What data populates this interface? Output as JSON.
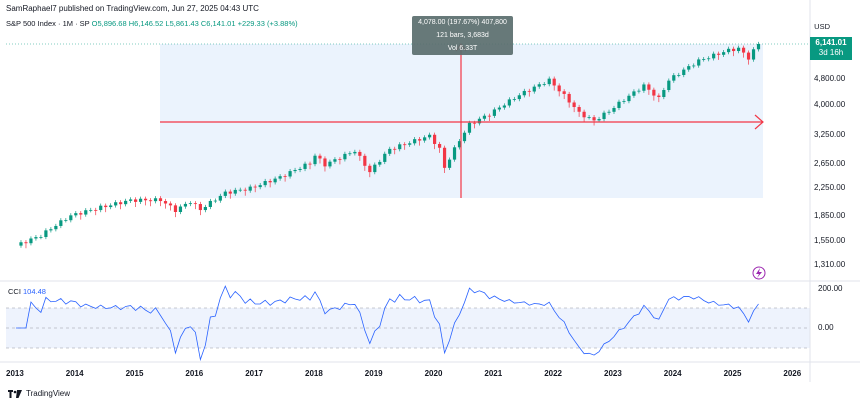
{
  "header": {
    "published": "SamRaphael7 published on TradingView.com, Jun 27, 2025 04:43 UTC"
  },
  "legend": {
    "symbol": "S&P 500 Index · 1M · SP",
    "ohlc": "O5,896.68 H6,146.52 L5,861.43 C6,141.01 +229.33 (+3.88%)"
  },
  "currency": "USD",
  "last_price": {
    "value": "6,141.01",
    "countdown": "3d 16h"
  },
  "tooltip": {
    "line1": "4,078.00 (197.67%) 407,800",
    "line2": "121 bars, 3,683d",
    "line3": "Vol 6.33T"
  },
  "cci": {
    "name": "CCI",
    "value": "104.48",
    "axis": [
      "200.00",
      "0.00"
    ]
  },
  "footer": {
    "brand": "TradingView"
  },
  "colors": {
    "up": "#089981",
    "down": "#f23645",
    "cci": "#2962ff",
    "measure": "#f23645",
    "range_fill": "#ebf3fd"
  },
  "chart_data": {
    "type": "candlestick",
    "title": "S&P 500 Index · 1M · SP",
    "scale": "log",
    "y_ticks": [
      "6,141.01",
      "4,800.00",
      "4,000.00",
      "3,250.00",
      "2,650.00",
      "2,250.00",
      "1,850.00",
      "1,550.00",
      "1,310.00"
    ],
    "x_ticks": [
      "2013",
      "2014",
      "2015",
      "2016",
      "2017",
      "2018",
      "2019",
      "2020",
      "2021",
      "2022",
      "2023",
      "2024",
      "2025",
      "2026"
    ],
    "close_series": [
      {
        "x": "2013-01",
        "y": 1500
      },
      {
        "x": "2013-06",
        "y": 1610
      },
      {
        "x": "2013-12",
        "y": 1850
      },
      {
        "x": "2014-06",
        "y": 1960
      },
      {
        "x": "2014-12",
        "y": 2060
      },
      {
        "x": "2015-06",
        "y": 2065
      },
      {
        "x": "2015-09",
        "y": 1920
      },
      {
        "x": "2015-12",
        "y": 2040
      },
      {
        "x": "2016-02",
        "y": 1930
      },
      {
        "x": "2016-07",
        "y": 2170
      },
      {
        "x": "2016-12",
        "y": 2240
      },
      {
        "x": "2017-06",
        "y": 2420
      },
      {
        "x": "2017-12",
        "y": 2670
      },
      {
        "x": "2018-01",
        "y": 2820
      },
      {
        "x": "2018-03",
        "y": 2640
      },
      {
        "x": "2018-09",
        "y": 2910
      },
      {
        "x": "2018-12",
        "y": 2510
      },
      {
        "x": "2019-04",
        "y": 2940
      },
      {
        "x": "2019-12",
        "y": 3230
      },
      {
        "x": "2020-02",
        "y": 2950
      },
      {
        "x": "2020-03",
        "y": 2580
      },
      {
        "x": "2020-08",
        "y": 3500
      },
      {
        "x": "2020-12",
        "y": 3760
      },
      {
        "x": "2021-06",
        "y": 4300
      },
      {
        "x": "2021-12",
        "y": 4770
      },
      {
        "x": "2022-06",
        "y": 3790
      },
      {
        "x": "2022-09",
        "y": 3590
      },
      {
        "x": "2022-12",
        "y": 3840
      },
      {
        "x": "2023-07",
        "y": 4590
      },
      {
        "x": "2023-10",
        "y": 4190
      },
      {
        "x": "2023-12",
        "y": 4770
      },
      {
        "x": "2024-06",
        "y": 5460
      },
      {
        "x": "2024-12",
        "y": 5880
      },
      {
        "x": "2025-02",
        "y": 5950
      },
      {
        "x": "2025-04",
        "y": 5570
      },
      {
        "x": "2025-06",
        "y": 6141
      }
    ],
    "measure_range": {
      "start": "2015-04",
      "end": "2025-05",
      "low": 2060,
      "high": 6141,
      "change": "4,078.00 (197.67%)",
      "bars": 121,
      "days": 3683
    }
  }
}
